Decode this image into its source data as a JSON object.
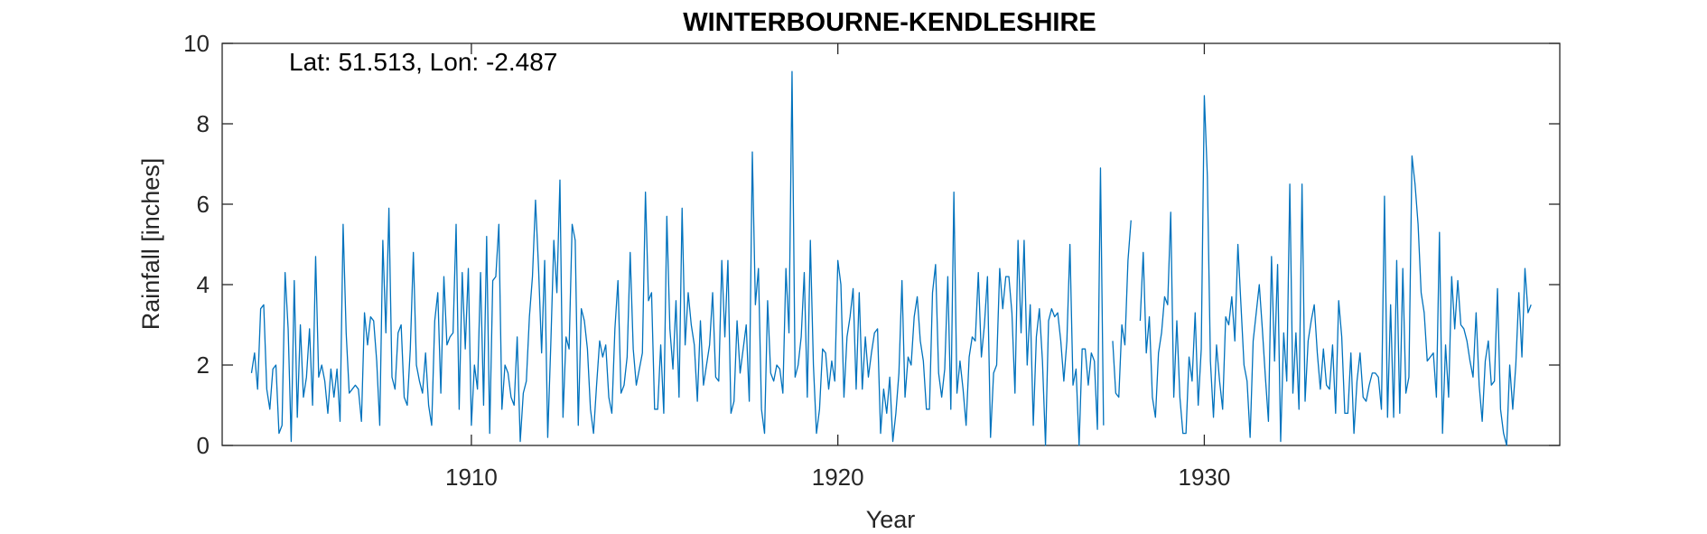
{
  "chart_data": {
    "type": "line",
    "title": "WINTERBOURNE-KENDLESHIRE",
    "xlabel": "Year",
    "ylabel": "Rainfall [inches]",
    "annotation": "Lat: 51.513, Lon: -2.487",
    "xlim": [
      1903.2,
      1939.7
    ],
    "ylim": [
      0,
      10
    ],
    "xticks": [
      1910,
      1920,
      1930
    ],
    "xtick_labels": [
      "1910",
      "1920",
      "1930"
    ],
    "yticks": [
      0,
      2,
      4,
      6,
      8,
      10
    ],
    "ytick_labels": [
      "0",
      "2",
      "4",
      "6",
      "8",
      "10"
    ],
    "grid": false,
    "box": true,
    "color": "#0072BD",
    "series": [
      {
        "start_year": 1904,
        "step_months": 1,
        "values": [
          1.8,
          2.3,
          1.4,
          3.4,
          3.5,
          1.4,
          0.9,
          1.9,
          2.0,
          0.3,
          0.5,
          4.3,
          2.9,
          0.1,
          4.1,
          0.7,
          3.0,
          1.2,
          1.7,
          2.9,
          1.0,
          4.7,
          1.7,
          2.0,
          1.6,
          0.8,
          1.9,
          1.2,
          1.9,
          0.6,
          5.5,
          2.8,
          1.3,
          1.4,
          1.5,
          1.4,
          0.6,
          3.3,
          2.5,
          3.2,
          3.1,
          2.1,
          0.5,
          5.1,
          2.8,
          5.9,
          1.7,
          1.4,
          2.8,
          3.0,
          1.2,
          1.0,
          2.4,
          4.8,
          2.0,
          1.6,
          1.3,
          2.3,
          1.0,
          0.5,
          3.1,
          3.8,
          1.3,
          4.2,
          2.5,
          2.7,
          2.8,
          5.5,
          0.9,
          4.3,
          2.4,
          4.4,
          0.5,
          2.0,
          1.4,
          4.3,
          1.0,
          5.2,
          0.3,
          4.1,
          4.2,
          5.5,
          0.9,
          2.0,
          1.8,
          1.2,
          1.0,
          2.7,
          0.1,
          1.3,
          1.6,
          3.2,
          4.2,
          6.1,
          4.4,
          2.3,
          4.6,
          0.2,
          2.5,
          5.1,
          3.8,
          6.6,
          0.7,
          2.7,
          2.4,
          5.5,
          5.1,
          0.5,
          3.4,
          3.1,
          2.4,
          0.9,
          0.3,
          1.5,
          2.6,
          2.2,
          2.5,
          1.2,
          0.8,
          2.9,
          4.1,
          1.3,
          1.5,
          2.2,
          4.8,
          2.4,
          1.5,
          1.9,
          2.3,
          6.3,
          3.6,
          3.8,
          0.9,
          0.9,
          2.5,
          0.8,
          5.7,
          2.9,
          1.9,
          3.6,
          1.2,
          5.9,
          2.5,
          3.8,
          3.0,
          2.5,
          1.1,
          3.1,
          1.5,
          2.0,
          2.5,
          3.8,
          1.7,
          1.6,
          4.6,
          2.7,
          4.6,
          0.8,
          1.1,
          3.1,
          1.8,
          2.4,
          3.0,
          1.1,
          7.3,
          3.5,
          4.4,
          0.9,
          0.3,
          3.6,
          1.8,
          1.6,
          2.0,
          1.9,
          1.3,
          4.4,
          2.8,
          9.3,
          1.7,
          2.0,
          2.7,
          4.3,
          1.2,
          5.1,
          2.0,
          0.3,
          0.9,
          2.4,
          2.3,
          1.4,
          2.1,
          1.6,
          4.6,
          4.0,
          1.2,
          2.7,
          3.2,
          3.9,
          1.4,
          3.8,
          1.4,
          2.7,
          1.7,
          2.3,
          2.8,
          2.9,
          0.3,
          1.4,
          0.8,
          1.7,
          0.1,
          0.8,
          1.8,
          4.1,
          1.2,
          2.2,
          2.0,
          3.2,
          3.7,
          2.6,
          2.1,
          0.9,
          0.9,
          3.8,
          4.5,
          1.8,
          1.2,
          1.9,
          4.2,
          0.9,
          6.3,
          1.3,
          2.1,
          1.4,
          0.5,
          2.2,
          2.7,
          2.6,
          4.3,
          2.2,
          3.0,
          4.2,
          0.2,
          1.8,
          2.0,
          4.4,
          3.4,
          4.2,
          4.2,
          3.3,
          1.3,
          5.1,
          2.8,
          5.1,
          2.0,
          3.5,
          0.5,
          2.7,
          3.4,
          2.1,
          0.0,
          3.1,
          3.4,
          3.2,
          3.3,
          2.6,
          1.6,
          2.6,
          5.0,
          1.5,
          1.9,
          0.0,
          2.4,
          2.4,
          1.5,
          2.3,
          2.1,
          0.4,
          6.9,
          0.5,
          null,
          null,
          2.6,
          1.3,
          1.2,
          3.0,
          2.5,
          4.6,
          5.6,
          null,
          null,
          3.1,
          4.8,
          2.3,
          3.2,
          1.2,
          0.7,
          2.3,
          2.8,
          3.7,
          3.5,
          5.8,
          1.2,
          3.1,
          1.2,
          0.3,
          0.3,
          2.2,
          1.6,
          3.3,
          1.0,
          2.4,
          8.7,
          6.7,
          2.1,
          0.7,
          2.5,
          1.6,
          0.9,
          3.2,
          3.0,
          3.7,
          2.6,
          5.0,
          3.5,
          2.0,
          1.6,
          0.2,
          2.6,
          3.3,
          4.0,
          2.9,
          1.7,
          0.6,
          4.7,
          2.1,
          4.5,
          0.1,
          2.8,
          1.6,
          6.5,
          1.3,
          2.8,
          0.9,
          6.5,
          1.1,
          2.6,
          3.1,
          3.5,
          2.3,
          1.4,
          2.4,
          1.5,
          1.4,
          2.5,
          0.8,
          3.6,
          2.7,
          0.8,
          0.8,
          2.3,
          0.3,
          1.6,
          2.3,
          1.2,
          1.1,
          1.5,
          1.8,
          1.8,
          1.7,
          0.9,
          6.2,
          0.7,
          3.5,
          0.7,
          4.6,
          0.8,
          4.4,
          1.3,
          1.7,
          7.2,
          6.5,
          5.5,
          3.8,
          3.3,
          2.1,
          2.2,
          2.3,
          1.2,
          5.3,
          0.3,
          2.5,
          1.2,
          4.2,
          2.9,
          4.1,
          3.0,
          2.9,
          2.6,
          2.1,
          1.7,
          3.3,
          1.5,
          0.6,
          2.1,
          2.6,
          1.5,
          1.6,
          3.9,
          0.9,
          0.3,
          0.0,
          2.0,
          0.9,
          2.0,
          3.8,
          2.2,
          4.4,
          3.3,
          3.5
        ]
      }
    ]
  }
}
